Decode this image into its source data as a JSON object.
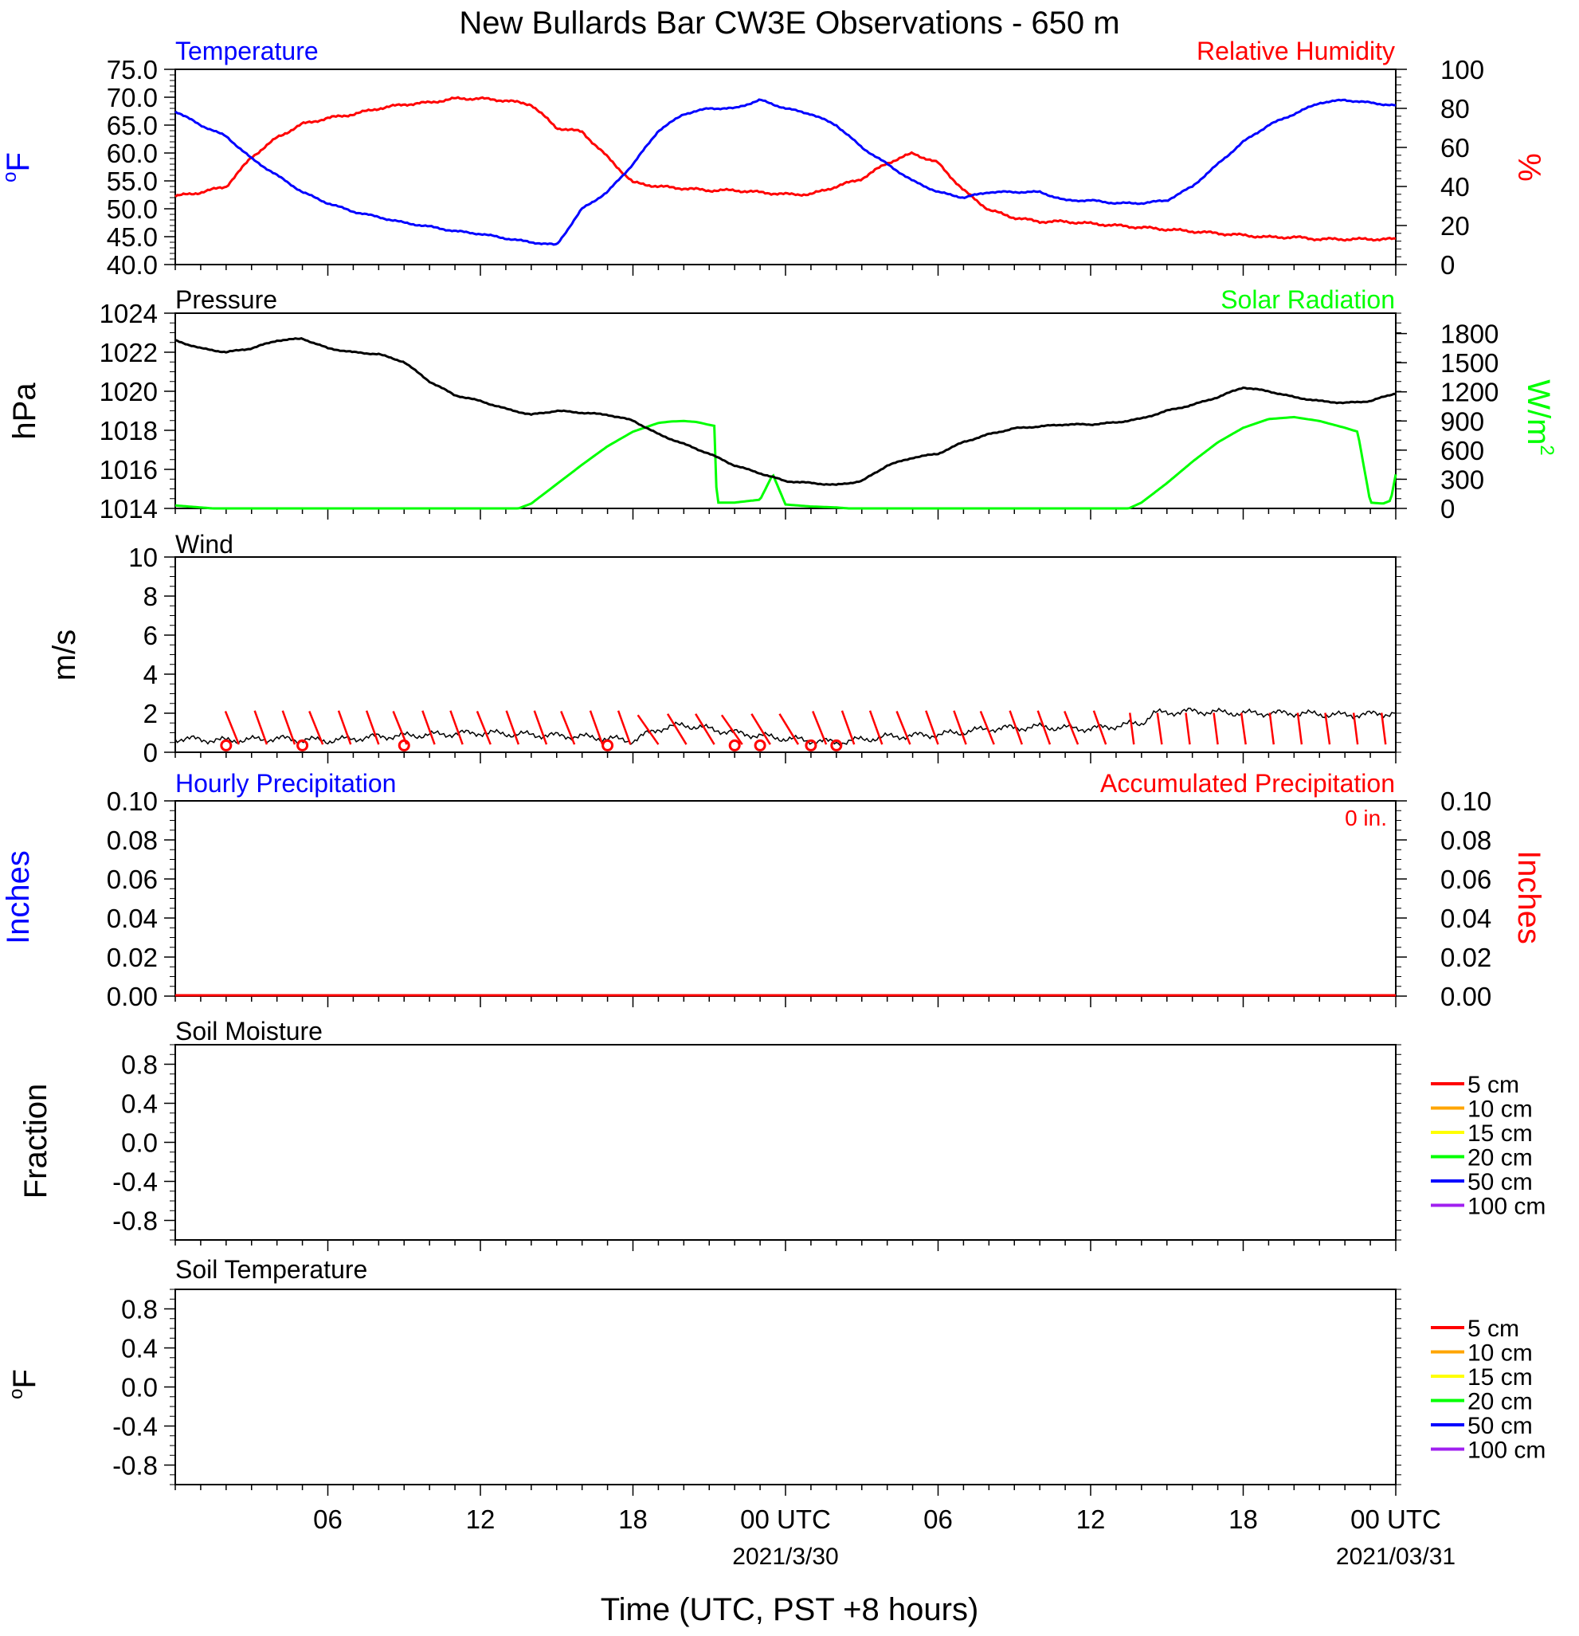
{
  "title": "New Bullards Bar CW3E Observations - 650 m",
  "x_axis": {
    "label": "Time (UTC, PST +8 hours)",
    "ticks": [
      "06",
      "12",
      "18",
      "00 UTC",
      "06",
      "12",
      "18",
      "00 UTC"
    ],
    "dates": [
      "2021/3/30",
      "2021/03/31"
    ]
  },
  "colors": {
    "temperature": "#0000ff",
    "humidity": "#ff0000",
    "pressure": "#000000",
    "solar": "#00ff00",
    "wind_speed": "#000000",
    "wind_barb": "#ff0000",
    "soil_5": "#ff0000",
    "soil_10": "#ffa500",
    "soil_15": "#ffff00",
    "soil_20": "#00ff00",
    "soil_50": "#0000ff",
    "soil_100": "#a020f0"
  },
  "chart_data": [
    {
      "type": "line",
      "panel": "Temperature / Relative Humidity",
      "left_title": "Temperature",
      "right_title": "Relative Humidity",
      "ylabel_left": "oF",
      "ylabel_right": "%",
      "ylim_left": [
        40,
        75
      ],
      "ylim_right": [
        0,
        100
      ],
      "yticks_left": [
        "75.0",
        "70.0",
        "65.0",
        "60.0",
        "55.0",
        "50.0",
        "45.0",
        "40.0"
      ],
      "yticks_right": [
        "100",
        "80",
        "60",
        "40",
        "20",
        "0"
      ],
      "x_hours": [
        0,
        1,
        2,
        3,
        4,
        5,
        6,
        7,
        8,
        9,
        10,
        11,
        12,
        13,
        14,
        15,
        16,
        17,
        18,
        19,
        20,
        21,
        22,
        23,
        24,
        25,
        26,
        27,
        28,
        29,
        30,
        31,
        32,
        33,
        34,
        35,
        36,
        37,
        38,
        39,
        40,
        41,
        42,
        43,
        44,
        45,
        46,
        47,
        48
      ],
      "series": [
        {
          "name": "Temperature",
          "axis": "left",
          "values": [
            67.5,
            65,
            63,
            59,
            56,
            53,
            51,
            49.5,
            48.5,
            47.5,
            46.8,
            46,
            45.5,
            44.7,
            44,
            43.5,
            50,
            53,
            58,
            64,
            67,
            68,
            68,
            69.5,
            68,
            67,
            65,
            61,
            58,
            55,
            53,
            52,
            53,
            53,
            53,
            51.5,
            51.5,
            51,
            51,
            51.5,
            54,
            58,
            62,
            65,
            67,
            69,
            69.5,
            69,
            68.5
          ]
        },
        {
          "name": "Relative Humidity",
          "axis": "right",
          "values": [
            35,
            37,
            40,
            55,
            65,
            72,
            75,
            77,
            80,
            82,
            83,
            85,
            85,
            84,
            82,
            70,
            68,
            55,
            42,
            40,
            39,
            38,
            38,
            37,
            36,
            36,
            40,
            44,
            52,
            57,
            52,
            38,
            28,
            24,
            22,
            22,
            21,
            20,
            19,
            18,
            17,
            16,
            15,
            14,
            14,
            13,
            13,
            13,
            13
          ]
        }
      ]
    },
    {
      "type": "line",
      "panel": "Pressure / Solar Radiation",
      "left_title": "Pressure",
      "right_title": "Solar Radiation",
      "ylabel_left": "hPa",
      "ylabel_right": "W/m2",
      "ylim_left": [
        1014,
        1024
      ],
      "ylim_right": [
        0,
        2010
      ],
      "yticks_left": [
        "1024",
        "1022",
        "1020",
        "1018",
        "1016",
        "1014"
      ],
      "yticks_right": [
        "1800",
        "1500",
        "1200",
        "900",
        "600",
        "300",
        "0"
      ],
      "x_hours": [
        0,
        1,
        2,
        3,
        4,
        5,
        6,
        7,
        8,
        9,
        10,
        11,
        12,
        13,
        14,
        15,
        16,
        17,
        18,
        19,
        20,
        21,
        22,
        23,
        24,
        25,
        26,
        27,
        28,
        29,
        30,
        31,
        32,
        33,
        34,
        35,
        36,
        37,
        38,
        39,
        40,
        41,
        42,
        43,
        44,
        45,
        46,
        47,
        48
      ],
      "series": [
        {
          "name": "Pressure",
          "axis": "left",
          "values": [
            1022.6,
            1022.2,
            1022.0,
            1022.2,
            1022.6,
            1022.7,
            1022.2,
            1022.0,
            1021.9,
            1021.5,
            1020.5,
            1019.8,
            1019.5,
            1019.1,
            1018.8,
            1019.0,
            1018.9,
            1018.8,
            1018.5,
            1017.8,
            1017.3,
            1016.8,
            1016.2,
            1015.8,
            1015.4,
            1015.3,
            1015.2,
            1015.4,
            1016.2,
            1016.6,
            1016.8,
            1017.4,
            1017.8,
            1018.1,
            1018.2,
            1018.3,
            1018.3,
            1018.4,
            1018.6,
            1019.0,
            1019.3,
            1019.7,
            1020.2,
            1020.0,
            1019.7,
            1019.5,
            1019.4,
            1019.5,
            1019.9
          ]
        },
        {
          "name": "Solar Radiation",
          "axis": "right",
          "x_hours": [
            0,
            1.5,
            13.5,
            14,
            15,
            16,
            17,
            18,
            19,
            19.5,
            20,
            20.5,
            21,
            21.2,
            21.3,
            22,
            23,
            23.5,
            24,
            25,
            26,
            26.5,
            37.5,
            38,
            39,
            40,
            41,
            42,
            43,
            44,
            45,
            46,
            46.5,
            47,
            47.5,
            47.8,
            48
          ],
          "values": [
            30,
            0,
            0,
            50,
            250,
            450,
            640,
            790,
            880,
            895,
            900,
            890,
            860,
            850,
            60,
            60,
            90,
            350,
            40,
            20,
            10,
            0,
            0,
            60,
            260,
            480,
            680,
            830,
            920,
            940,
            900,
            830,
            790,
            60,
            50,
            80,
            350
          ]
        }
      ]
    },
    {
      "type": "line",
      "panel": "Wind",
      "left_title": "Wind",
      "ylabel_left": "m/s",
      "ylim_left": [
        0,
        10
      ],
      "yticks_left": [
        "10",
        "8",
        "6",
        "4",
        "2",
        "0"
      ],
      "x_hours": [
        0,
        2,
        4,
        6,
        8,
        10,
        12,
        14,
        16,
        18,
        19,
        20,
        22,
        24,
        26,
        28,
        30,
        32,
        34,
        36,
        38,
        38.5,
        40,
        42,
        44,
        46,
        48
      ],
      "series": [
        {
          "name": "Wind speed",
          "values": [
            0.7,
            0.6,
            0.7,
            0.6,
            0.8,
            0.9,
            1.0,
            0.9,
            0.8,
            0.6,
            1.2,
            1.4,
            1.0,
            0.7,
            0.5,
            0.8,
            0.9,
            1.2,
            1.3,
            1.2,
            1.5,
            2.0,
            2.1,
            2.0,
            2.0,
            1.9,
            2.0
          ]
        }
      ]
    },
    {
      "type": "line",
      "panel": "Precipitation",
      "left_title": "Hourly Precipitation",
      "right_title": "Accumulated Precipitation",
      "annotation": "0 in.",
      "ylabel_left": "Inches",
      "ylabel_right": "Inches",
      "ylim_left": [
        0,
        0.1
      ],
      "ylim_right": [
        0,
        0.1
      ],
      "yticks_left": [
        "0.10",
        "0.08",
        "0.06",
        "0.04",
        "0.02",
        "0.00"
      ],
      "yticks_right": [
        "0.10",
        "0.08",
        "0.06",
        "0.04",
        "0.02",
        "0.00"
      ],
      "x_hours": [
        0,
        48
      ],
      "series": [
        {
          "name": "Hourly Precipitation",
          "values": [
            0,
            0
          ]
        },
        {
          "name": "Accumulated Precipitation",
          "values": [
            0,
            0
          ]
        }
      ]
    },
    {
      "type": "line",
      "panel": "Soil Moisture",
      "left_title": "Soil Moisture",
      "ylabel_left": "Fraction",
      "ylim_left": [
        -1,
        1
      ],
      "yticks_left": [
        "0.8",
        "0.4",
        "0.0",
        "-0.4",
        "-0.8"
      ],
      "legend": [
        "5 cm",
        "10 cm",
        "15 cm",
        "20 cm",
        "50 cm",
        "100 cm"
      ],
      "series": []
    },
    {
      "type": "line",
      "panel": "Soil Temperature",
      "left_title": "Soil Temperature",
      "ylabel_left": "oF",
      "ylim_left": [
        -1,
        1
      ],
      "yticks_left": [
        "0.8",
        "0.4",
        "0.0",
        "-0.4",
        "-0.8"
      ],
      "legend": [
        "5 cm",
        "10 cm",
        "15 cm",
        "20 cm",
        "50 cm",
        "100 cm"
      ],
      "series": []
    }
  ]
}
